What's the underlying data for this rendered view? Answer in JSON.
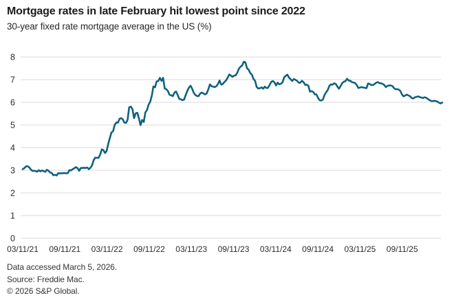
{
  "header": {
    "title": "Mortgage rates in late February hit lowest point since 2022",
    "subtitle": "30-year fixed rate mortgage average in the US (%)"
  },
  "footer": {
    "line1": "Data accessed March 5, 2026.",
    "line2": "Source: Freddie Mac.",
    "line3": "© 2026 S&P Global."
  },
  "chart_data": {
    "type": "line",
    "title": "Mortgage rates in late February hit lowest point since 2022",
    "subtitle": "30-year fixed rate mortgage average in the US (%)",
    "series_name": "30-year fixed rate mortgage average in the US (%)",
    "frequency": "weekly",
    "x_start": "03/11/21",
    "x_end": "03/05/26",
    "x_tick_labels": [
      "03/11/21",
      "09/11/21",
      "03/11/22",
      "09/11/22",
      "03/11/23",
      "09/11/23",
      "03/11/24",
      "09/11/24",
      "03/11/25",
      "09/11/25"
    ],
    "y_ticks": [
      0,
      1,
      2,
      3,
      4,
      5,
      6,
      7,
      8
    ],
    "ylim": [
      0,
      8
    ],
    "grid": "horizontal",
    "legend": "none",
    "line_color": "#0f617e",
    "grid_color": "#d8d8d8",
    "tick_label_color": "#2b2b2b",
    "values": [
      3.05,
      3.09,
      3.17,
      3.18,
      3.13,
      3.04,
      2.97,
      2.98,
      2.96,
      2.94,
      3.0,
      2.95,
      2.99,
      2.96,
      2.93,
      3.02,
      2.98,
      2.9,
      2.88,
      2.78,
      2.8,
      2.77,
      2.87,
      2.86,
      2.87,
      2.87,
      2.88,
      2.86,
      2.88,
      3.01,
      2.99,
      3.05,
      3.09,
      3.14,
      3.09,
      2.98,
      3.1,
      3.1,
      3.11,
      3.1,
      3.12,
      3.05,
      3.11,
      3.22,
      3.45,
      3.56,
      3.55,
      3.55,
      3.69,
      3.92,
      3.89,
      3.76,
      3.85,
      4.16,
      4.42,
      4.67,
      4.72,
      5.0,
      5.11,
      5.1,
      5.27,
      5.3,
      5.25,
      5.1,
      5.09,
      5.23,
      5.78,
      5.81,
      5.7,
      5.3,
      5.51,
      5.54,
      5.3,
      4.99,
      5.22,
      5.13,
      5.55,
      5.66,
      5.89,
      6.02,
      6.29,
      6.7,
      6.66,
      6.92,
      6.94,
      7.08,
      6.95,
      7.08,
      6.61,
      6.58,
      6.49,
      6.33,
      6.31,
      6.27,
      6.42,
      6.48,
      6.33,
      6.15,
      6.13,
      6.09,
      6.12,
      6.32,
      6.5,
      6.65,
      6.73,
      6.6,
      6.42,
      6.32,
      6.28,
      6.27,
      6.39,
      6.43,
      6.39,
      6.35,
      6.39,
      6.57,
      6.79,
      6.71,
      6.69,
      6.67,
      6.71,
      6.81,
      6.96,
      6.78,
      6.81,
      6.9,
      6.96,
      7.09,
      7.23,
      7.18,
      7.12,
      7.18,
      7.19,
      7.31,
      7.49,
      7.57,
      7.63,
      7.79,
      7.76,
      7.5,
      7.44,
      7.29,
      7.22,
      7.03,
      6.95,
      6.67,
      6.61,
      6.62,
      6.66,
      6.6,
      6.69,
      6.63,
      6.64,
      6.77,
      6.9,
      6.94,
      6.88,
      6.74,
      6.87,
      6.79,
      6.82,
      6.88,
      7.1,
      7.17,
      7.22,
      7.09,
      7.02,
      6.94,
      7.03,
      6.99,
      6.95,
      6.87,
      6.86,
      6.95,
      6.89,
      6.77,
      6.78,
      6.73,
      6.47,
      6.49,
      6.46,
      6.35,
      6.35,
      6.2,
      6.09,
      6.08,
      6.12,
      6.32,
      6.44,
      6.54,
      6.72,
      6.79,
      6.78,
      6.84,
      6.81,
      6.69,
      6.6,
      6.72,
      6.85,
      6.91,
      6.93,
      7.04,
      6.96,
      6.95,
      6.89,
      6.87,
      6.85,
      6.76,
      6.63,
      6.65,
      6.67,
      6.65,
      6.64,
      6.62,
      6.83,
      6.81,
      6.76,
      6.76,
      6.81,
      6.86,
      6.89,
      6.85,
      6.84,
      6.81,
      6.77,
      6.67,
      6.72,
      6.75,
      6.74,
      6.72,
      6.63,
      6.58,
      6.58,
      6.56,
      6.5,
      6.35,
      6.26,
      6.3,
      6.34,
      6.3,
      6.27,
      6.19,
      6.17,
      6.22,
      6.24,
      6.26,
      6.23,
      6.21,
      6.19,
      6.22,
      6.2,
      6.15,
      6.1,
      6.06,
      6.05,
      6.07,
      6.05,
      6.03,
      5.98,
      5.95,
      5.99
    ]
  }
}
